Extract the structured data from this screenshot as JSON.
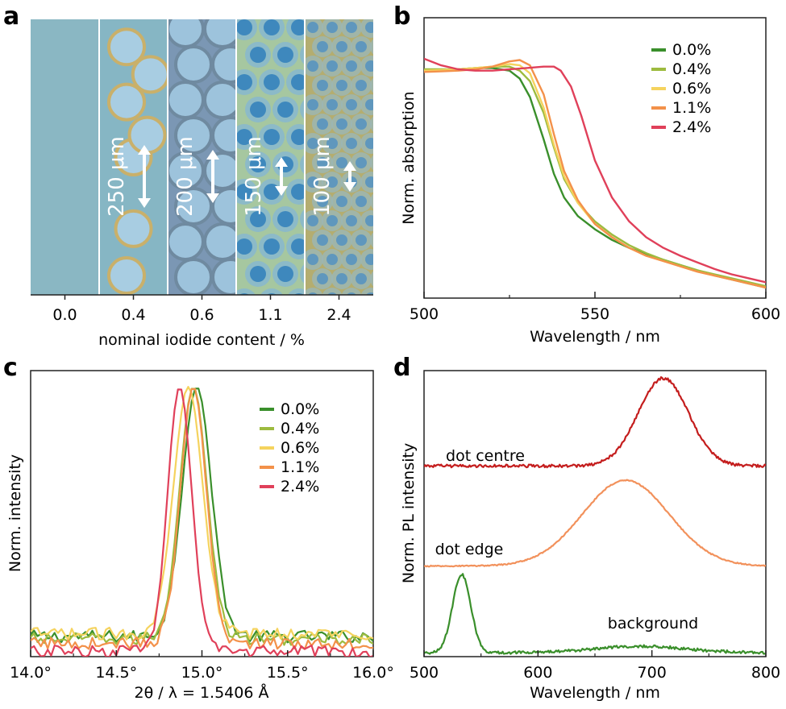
{
  "panel_labels": [
    "a",
    "b",
    "c",
    "d"
  ],
  "micrograph": {
    "xlabel": "nominal iodide content / %",
    "strips": [
      {
        "content": "0.0",
        "scale_label": "",
        "pattern": "none",
        "bg": "#8ab7c3",
        "dot": "#a9cedb",
        "ring": "#8ab7c3"
      },
      {
        "content": "0.4",
        "scale_label": "250 μm",
        "pattern": "sparse",
        "bg": "#86b6c4",
        "dot": "#a8cde2",
        "ring": "#c9b06a"
      },
      {
        "content": "0.6",
        "scale_label": "200 μm",
        "pattern": "dense",
        "bg": "#7b97b4",
        "dot": "#9dc3dc",
        "ring": "#6f8aa0"
      },
      {
        "content": "1.1",
        "scale_label": "150 μm",
        "pattern": "grid",
        "bg": "#a6c7a0",
        "dot": "#3e88bd",
        "ring": "#86b7d2"
      },
      {
        "content": "2.4",
        "scale_label": "100 μm",
        "pattern": "grid",
        "bg": "#b4ad70",
        "dot": "#5f97bd",
        "ring": "#9bb6b6"
      }
    ]
  },
  "chart_data": [
    {
      "id": "b",
      "type": "line",
      "xlabel": "Wavelength / nm",
      "ylabel": "Norm. absorption",
      "xlim": [
        500,
        600
      ],
      "ylim": [
        0,
        1.06
      ],
      "xticks": [
        "500",
        "550",
        "600"
      ],
      "legend_position": "top-right",
      "series": [
        {
          "name": "0.0%",
          "color": "#3a8f2b",
          "x": [
            500,
            505,
            510,
            515,
            520,
            525,
            528,
            531,
            535,
            538,
            541,
            545,
            550,
            555,
            560,
            565,
            570,
            575,
            580,
            585,
            590,
            595,
            600
          ],
          "y": [
            0.86,
            0.86,
            0.865,
            0.87,
            0.87,
            0.86,
            0.83,
            0.76,
            0.6,
            0.47,
            0.38,
            0.31,
            0.26,
            0.22,
            0.19,
            0.165,
            0.145,
            0.125,
            0.105,
            0.085,
            0.07,
            0.055,
            0.04
          ]
        },
        {
          "name": "0.4%",
          "color": "#9dbb3f",
          "x": [
            500,
            505,
            510,
            515,
            520,
            525,
            528,
            531,
            535,
            538,
            541,
            545,
            550,
            555,
            560,
            565,
            570,
            575,
            580,
            585,
            590,
            595,
            600
          ],
          "y": [
            0.865,
            0.865,
            0.865,
            0.87,
            0.875,
            0.875,
            0.86,
            0.82,
            0.7,
            0.57,
            0.45,
            0.36,
            0.29,
            0.24,
            0.2,
            0.17,
            0.145,
            0.125,
            0.105,
            0.09,
            0.075,
            0.06,
            0.045
          ]
        },
        {
          "name": "0.6%",
          "color": "#f5d35e",
          "x": [
            500,
            505,
            510,
            515,
            520,
            525,
            528,
            531,
            535,
            538,
            541,
            545,
            550,
            555,
            560,
            565,
            570,
            575,
            580,
            585,
            590,
            595,
            600
          ],
          "y": [
            0.86,
            0.862,
            0.865,
            0.87,
            0.875,
            0.885,
            0.88,
            0.85,
            0.72,
            0.58,
            0.46,
            0.36,
            0.28,
            0.23,
            0.19,
            0.16,
            0.14,
            0.12,
            0.1,
            0.085,
            0.07,
            0.055,
            0.04
          ]
        },
        {
          "name": "1.1%",
          "color": "#f3914a",
          "x": [
            500,
            505,
            510,
            515,
            520,
            525,
            528,
            531,
            535,
            538,
            541,
            545,
            550,
            555,
            560,
            565,
            570,
            575,
            580,
            585,
            590,
            595,
            600
          ],
          "y": [
            0.855,
            0.857,
            0.86,
            0.865,
            0.875,
            0.895,
            0.9,
            0.88,
            0.77,
            0.62,
            0.48,
            0.37,
            0.28,
            0.23,
            0.19,
            0.16,
            0.14,
            0.12,
            0.1,
            0.085,
            0.07,
            0.055,
            0.04
          ]
        },
        {
          "name": "2.4%",
          "color": "#e0405a",
          "x": [
            500,
            505,
            510,
            515,
            520,
            525,
            530,
            535,
            538,
            540,
            543,
            546,
            550,
            555,
            560,
            565,
            570,
            575,
            580,
            585,
            590,
            595,
            600
          ],
          "y": [
            0.905,
            0.88,
            0.865,
            0.86,
            0.86,
            0.865,
            0.87,
            0.875,
            0.875,
            0.86,
            0.8,
            0.69,
            0.52,
            0.38,
            0.29,
            0.23,
            0.19,
            0.16,
            0.135,
            0.11,
            0.09,
            0.075,
            0.06
          ]
        }
      ]
    },
    {
      "id": "c",
      "type": "line",
      "xlabel": "2θ / λ = 1.5406 Å",
      "ylabel": "Norm. intensity",
      "xlim": [
        14.0,
        16.0
      ],
      "ylim": [
        0,
        1.06
      ],
      "xticks": [
        "14.0°",
        "14.5°",
        "15.0°",
        "15.5°",
        "16.0°"
      ],
      "legend_position": "top-right",
      "series": [
        {
          "name": "0.0%",
          "color": "#3a8f2b",
          "center": 14.97,
          "width": 0.085,
          "base": 0.075
        },
        {
          "name": "0.4%",
          "color": "#9dbb3f",
          "center": 14.95,
          "width": 0.08,
          "base": 0.065
        },
        {
          "name": "0.6%",
          "color": "#f5d35e",
          "center": 14.92,
          "width": 0.085,
          "base": 0.085
        },
        {
          "name": "1.1%",
          "color": "#f3914a",
          "center": 14.95,
          "width": 0.075,
          "base": 0.05
        },
        {
          "name": "2.4%",
          "color": "#e0405a",
          "center": 14.87,
          "width": 0.07,
          "base": 0.02
        }
      ]
    },
    {
      "id": "d",
      "type": "line",
      "xlabel": "Wavelength / nm",
      "ylabel": "Norm. PL intensity",
      "xlim": [
        500,
        800
      ],
      "ylim": [
        0,
        3.0
      ],
      "xticks": [
        "500",
        "600",
        "700",
        "800"
      ],
      "series": [
        {
          "name": "dot centre",
          "color": "#c41d1d",
          "offset": 2.0,
          "peak": 710,
          "sigma": 22,
          "amp": 0.92,
          "noise": 0.03
        },
        {
          "name": "dot edge",
          "color": "#f2915b",
          "offset": 0.95,
          "peak": 677,
          "sigma": 38,
          "amp": 0.9,
          "noise": 0.012
        },
        {
          "name": "background",
          "color": "#3a8f2b",
          "offset": 0.04,
          "peak": 533,
          "sigma": 8,
          "amp": 0.82,
          "noise": 0.03,
          "peak2": 690,
          "sigma2": 40,
          "amp2": 0.07
        }
      ]
    }
  ]
}
